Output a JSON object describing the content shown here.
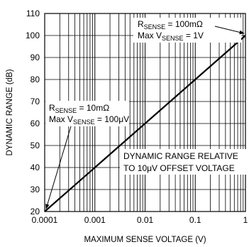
{
  "chart_data": {
    "type": "line",
    "title": "",
    "xlabel": "MAXIMUM SENSE VOLTAGE (V)",
    "ylabel": "DYNAMIC RANGE (dB)",
    "xscale": "log",
    "xlim": [
      0.0001,
      1
    ],
    "ylim": [
      20,
      110
    ],
    "grid": true,
    "x_ticks": [
      "0.0001",
      "0.001",
      "0.01",
      "0.1",
      "1"
    ],
    "y_ticks": [
      "20",
      "30",
      "40",
      "50",
      "60",
      "70",
      "80",
      "90",
      "100",
      "110"
    ],
    "series": [
      {
        "x": [
          0.0001,
          0.001,
          0.01,
          0.1,
          1
        ],
        "y": [
          20,
          40,
          60,
          80,
          100
        ]
      }
    ],
    "annotations": {
      "top": {
        "line1_prefix": "R",
        "line1_sub": "SENSE",
        "line1_suffix": " = 100mΩ",
        "line2_prefix": "Max V",
        "line2_sub": "SENSE",
        "line2_suffix": " = 1V",
        "points_to": {
          "x": 1,
          "y": 100
        }
      },
      "bottom": {
        "line1_prefix": "R",
        "line1_sub": "SENSE",
        "line1_suffix": " = 10mΩ",
        "line2_prefix": "Max V",
        "line2_sub": "SENSE",
        "line2_suffix": " = 100μV",
        "points_to": {
          "x": 0.0001,
          "y": 20
        }
      },
      "note": {
        "line1": "DYNAMIC RANGE RELATIVE",
        "line2": "TO 10μV OFFSET VOLTAGE"
      }
    }
  }
}
